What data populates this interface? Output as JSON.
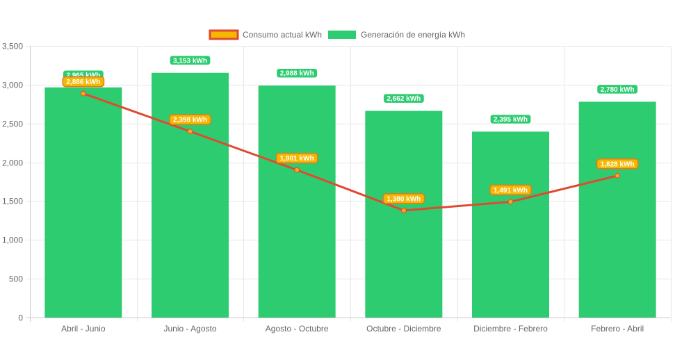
{
  "chart_data": {
    "type": "bar",
    "categories": [
      "Abril - Junio",
      "Junio - Agosto",
      "Agosto - Octubre",
      "Octubre - Diciembre",
      "Diciembre - Febrero",
      "Febrero - Abril"
    ],
    "series": [
      {
        "name": "Consumo actual kWh",
        "type": "line",
        "values": [
          2886,
          2398,
          1901,
          1380,
          1491,
          1828
        ],
        "labels": [
          "2,886 kWh",
          "2,398 kWh",
          "1,901 kWh",
          "1,380 kWh",
          "1,491 kWh",
          "1,828 kWh"
        ],
        "color": "#e04a2f",
        "label_bg": "#f5b800",
        "label_border": "#e07a1f"
      },
      {
        "name": "Generación de energía kWh",
        "type": "bar",
        "values": [
          2965,
          3153,
          2988,
          2662,
          2395,
          2780
        ],
        "labels": [
          "2,965 kWh",
          "3,153 kWh",
          "2,988 kWh",
          "2,662 kWh",
          "2,395 kWh",
          "2,780 kWh"
        ],
        "color": "#2ecc71",
        "label_bg": "#2ecc71",
        "label_border": "#ffffff"
      }
    ],
    "legend": {
      "position": "top-center",
      "items": [
        "Consumo actual kWh",
        "Generación de energía kWh"
      ]
    },
    "ylim": [
      0,
      3500
    ],
    "yticks": [
      0,
      500,
      1000,
      1500,
      2000,
      2500,
      3000,
      3500
    ],
    "ytick_labels": [
      "0",
      "500",
      "1,000",
      "1,500",
      "2,000",
      "2,500",
      "3,000",
      "3,500"
    ],
    "grid": true,
    "title": "",
    "xlabel": "",
    "ylabel": ""
  }
}
